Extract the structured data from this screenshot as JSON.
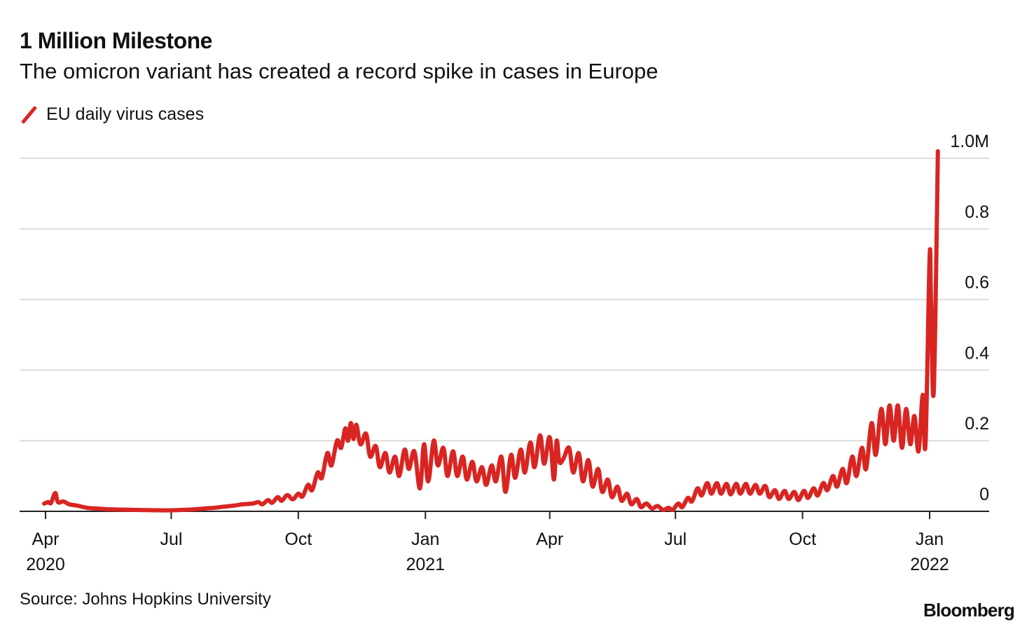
{
  "title": "1 Million Milestone",
  "subtitle": "The omicron variant has created a record spike in cases in Europe",
  "legend": {
    "label": "EU daily virus cases",
    "color": "#d92522"
  },
  "source": "Source: Johns Hopkins University",
  "brand": "Bloomberg",
  "chart_data": {
    "type": "line",
    "title": "1 Million Milestone",
    "subtitle": "The omicron variant has created a record spike in cases in Europe",
    "xlabel": "",
    "ylabel": "",
    "y_unit": "millions",
    "ylim": [
      0,
      1.0
    ],
    "xlim": [
      "2020-03-14",
      "2022-02-15"
    ],
    "yticks": [
      {
        "value": 0,
        "label": "0"
      },
      {
        "value": 0.2,
        "label": "0.2"
      },
      {
        "value": 0.4,
        "label": "0.4"
      },
      {
        "value": 0.6,
        "label": "0.6"
      },
      {
        "value": 0.8,
        "label": "0.8"
      },
      {
        "value": 1.0,
        "label": "1.0M"
      }
    ],
    "xticks": [
      {
        "date": "2020-04-01",
        "label": "Apr",
        "sublabel": "2020"
      },
      {
        "date": "2020-07-01",
        "label": "Jul",
        "sublabel": ""
      },
      {
        "date": "2020-10-01",
        "label": "Oct",
        "sublabel": ""
      },
      {
        "date": "2021-01-01",
        "label": "Jan",
        "sublabel": "2021"
      },
      {
        "date": "2021-04-01",
        "label": "Apr",
        "sublabel": ""
      },
      {
        "date": "2021-07-01",
        "label": "Jul",
        "sublabel": ""
      },
      {
        "date": "2021-10-01",
        "label": "Oct",
        "sublabel": ""
      },
      {
        "date": "2022-01-01",
        "label": "Jan",
        "sublabel": "2022"
      }
    ],
    "grid": true,
    "legend_position": "top-left",
    "y_axis_position": "right",
    "series": [
      {
        "name": "EU daily virus cases",
        "color": "#d92522",
        "points": [
          [
            "2020-03-31",
            0.022
          ],
          [
            "2020-04-03",
            0.026
          ],
          [
            "2020-04-05",
            0.024
          ],
          [
            "2020-04-08",
            0.052
          ],
          [
            "2020-04-10",
            0.026
          ],
          [
            "2020-04-14",
            0.028
          ],
          [
            "2020-04-18",
            0.02
          ],
          [
            "2020-04-24",
            0.016
          ],
          [
            "2020-05-01",
            0.01
          ],
          [
            "2020-05-08",
            0.008
          ],
          [
            "2020-05-15",
            0.006
          ],
          [
            "2020-05-25",
            0.005
          ],
          [
            "2020-06-05",
            0.004
          ],
          [
            "2020-06-20",
            0.003
          ],
          [
            "2020-07-01",
            0.003
          ],
          [
            "2020-07-15",
            0.005
          ],
          [
            "2020-07-25",
            0.008
          ],
          [
            "2020-08-01",
            0.01
          ],
          [
            "2020-08-08",
            0.013
          ],
          [
            "2020-08-15",
            0.016
          ],
          [
            "2020-08-22",
            0.02
          ],
          [
            "2020-08-29",
            0.022
          ],
          [
            "2020-09-02",
            0.026
          ],
          [
            "2020-09-05",
            0.02
          ],
          [
            "2020-09-09",
            0.032
          ],
          [
            "2020-09-12",
            0.024
          ],
          [
            "2020-09-16",
            0.04
          ],
          [
            "2020-09-19",
            0.03
          ],
          [
            "2020-09-23",
            0.046
          ],
          [
            "2020-09-27",
            0.034
          ],
          [
            "2020-10-01",
            0.05
          ],
          [
            "2020-10-04",
            0.042
          ],
          [
            "2020-10-08",
            0.075
          ],
          [
            "2020-10-11",
            0.06
          ],
          [
            "2020-10-15",
            0.11
          ],
          [
            "2020-10-18",
            0.095
          ],
          [
            "2020-10-22",
            0.165
          ],
          [
            "2020-10-25",
            0.13
          ],
          [
            "2020-10-29",
            0.2
          ],
          [
            "2020-11-01",
            0.18
          ],
          [
            "2020-11-04",
            0.235
          ],
          [
            "2020-11-06",
            0.2
          ],
          [
            "2020-11-08",
            0.25
          ],
          [
            "2020-11-10",
            0.205
          ],
          [
            "2020-11-12",
            0.245
          ],
          [
            "2020-11-15",
            0.19
          ],
          [
            "2020-11-19",
            0.22
          ],
          [
            "2020-11-22",
            0.155
          ],
          [
            "2020-11-26",
            0.185
          ],
          [
            "2020-11-29",
            0.125
          ],
          [
            "2020-12-03",
            0.165
          ],
          [
            "2020-12-06",
            0.11
          ],
          [
            "2020-12-10",
            0.155
          ],
          [
            "2020-12-13",
            0.1
          ],
          [
            "2020-12-17",
            0.175
          ],
          [
            "2020-12-20",
            0.12
          ],
          [
            "2020-12-24",
            0.17
          ],
          [
            "2020-12-28",
            0.065
          ],
          [
            "2020-12-31",
            0.19
          ],
          [
            "2021-01-03",
            0.085
          ],
          [
            "2021-01-07",
            0.2
          ],
          [
            "2021-01-10",
            0.13
          ],
          [
            "2021-01-14",
            0.18
          ],
          [
            "2021-01-17",
            0.1
          ],
          [
            "2021-01-21",
            0.17
          ],
          [
            "2021-01-24",
            0.1
          ],
          [
            "2021-01-28",
            0.155
          ],
          [
            "2021-01-31",
            0.09
          ],
          [
            "2021-02-04",
            0.14
          ],
          [
            "2021-02-07",
            0.085
          ],
          [
            "2021-02-11",
            0.125
          ],
          [
            "2021-02-14",
            0.075
          ],
          [
            "2021-02-18",
            0.13
          ],
          [
            "2021-02-21",
            0.085
          ],
          [
            "2021-02-25",
            0.155
          ],
          [
            "2021-02-28",
            0.055
          ],
          [
            "2021-03-04",
            0.16
          ],
          [
            "2021-03-07",
            0.095
          ],
          [
            "2021-03-11",
            0.175
          ],
          [
            "2021-03-14",
            0.11
          ],
          [
            "2021-03-18",
            0.195
          ],
          [
            "2021-03-21",
            0.125
          ],
          [
            "2021-03-25",
            0.215
          ],
          [
            "2021-03-28",
            0.135
          ],
          [
            "2021-04-01",
            0.21
          ],
          [
            "2021-04-04",
            0.09
          ],
          [
            "2021-04-06",
            0.2
          ],
          [
            "2021-04-08",
            0.14
          ],
          [
            "2021-04-11",
            0.15
          ],
          [
            "2021-04-15",
            0.18
          ],
          [
            "2021-04-18",
            0.11
          ],
          [
            "2021-04-22",
            0.165
          ],
          [
            "2021-04-25",
            0.085
          ],
          [
            "2021-04-29",
            0.145
          ],
          [
            "2021-05-02",
            0.07
          ],
          [
            "2021-05-06",
            0.12
          ],
          [
            "2021-05-09",
            0.055
          ],
          [
            "2021-05-13",
            0.09
          ],
          [
            "2021-05-16",
            0.04
          ],
          [
            "2021-05-20",
            0.07
          ],
          [
            "2021-05-23",
            0.03
          ],
          [
            "2021-05-27",
            0.05
          ],
          [
            "2021-05-30",
            0.02
          ],
          [
            "2021-06-03",
            0.035
          ],
          [
            "2021-06-06",
            0.012
          ],
          [
            "2021-06-10",
            0.022
          ],
          [
            "2021-06-14",
            0.008
          ],
          [
            "2021-06-18",
            0.015
          ],
          [
            "2021-06-22",
            0.004
          ],
          [
            "2021-06-26",
            0.01
          ],
          [
            "2021-06-29",
            0.004
          ],
          [
            "2021-07-03",
            0.022
          ],
          [
            "2021-07-06",
            0.012
          ],
          [
            "2021-07-10",
            0.038
          ],
          [
            "2021-07-13",
            0.028
          ],
          [
            "2021-07-17",
            0.065
          ],
          [
            "2021-07-20",
            0.045
          ],
          [
            "2021-07-24",
            0.08
          ],
          [
            "2021-07-27",
            0.05
          ],
          [
            "2021-07-31",
            0.08
          ],
          [
            "2021-08-03",
            0.05
          ],
          [
            "2021-08-07",
            0.078
          ],
          [
            "2021-08-10",
            0.048
          ],
          [
            "2021-08-14",
            0.078
          ],
          [
            "2021-08-17",
            0.05
          ],
          [
            "2021-08-21",
            0.078
          ],
          [
            "2021-08-24",
            0.05
          ],
          [
            "2021-08-28",
            0.075
          ],
          [
            "2021-08-31",
            0.05
          ],
          [
            "2021-09-04",
            0.072
          ],
          [
            "2021-09-07",
            0.04
          ],
          [
            "2021-09-11",
            0.06
          ],
          [
            "2021-09-14",
            0.035
          ],
          [
            "2021-09-18",
            0.058
          ],
          [
            "2021-09-21",
            0.035
          ],
          [
            "2021-09-25",
            0.055
          ],
          [
            "2021-09-28",
            0.032
          ],
          [
            "2021-10-02",
            0.058
          ],
          [
            "2021-10-05",
            0.038
          ],
          [
            "2021-10-09",
            0.065
          ],
          [
            "2021-10-12",
            0.045
          ],
          [
            "2021-10-16",
            0.08
          ],
          [
            "2021-10-19",
            0.06
          ],
          [
            "2021-10-23",
            0.1
          ],
          [
            "2021-10-26",
            0.07
          ],
          [
            "2021-10-30",
            0.12
          ],
          [
            "2021-11-02",
            0.08
          ],
          [
            "2021-11-06",
            0.155
          ],
          [
            "2021-11-09",
            0.1
          ],
          [
            "2021-11-13",
            0.18
          ],
          [
            "2021-11-16",
            0.12
          ],
          [
            "2021-11-20",
            0.25
          ],
          [
            "2021-11-23",
            0.16
          ],
          [
            "2021-11-27",
            0.29
          ],
          [
            "2021-11-30",
            0.19
          ],
          [
            "2021-12-03",
            0.3
          ],
          [
            "2021-12-06",
            0.2
          ],
          [
            "2021-12-09",
            0.3
          ],
          [
            "2021-12-12",
            0.18
          ],
          [
            "2021-12-15",
            0.29
          ],
          [
            "2021-12-18",
            0.19
          ],
          [
            "2021-12-21",
            0.27
          ],
          [
            "2021-12-24",
            0.17
          ],
          [
            "2021-12-27",
            0.33
          ],
          [
            "2021-12-29",
            0.19
          ],
          [
            "2022-01-01",
            0.72
          ],
          [
            "2022-01-02",
            0.6
          ],
          [
            "2022-01-04",
            0.34
          ],
          [
            "2022-01-07",
            1.02
          ]
        ]
      }
    ]
  }
}
